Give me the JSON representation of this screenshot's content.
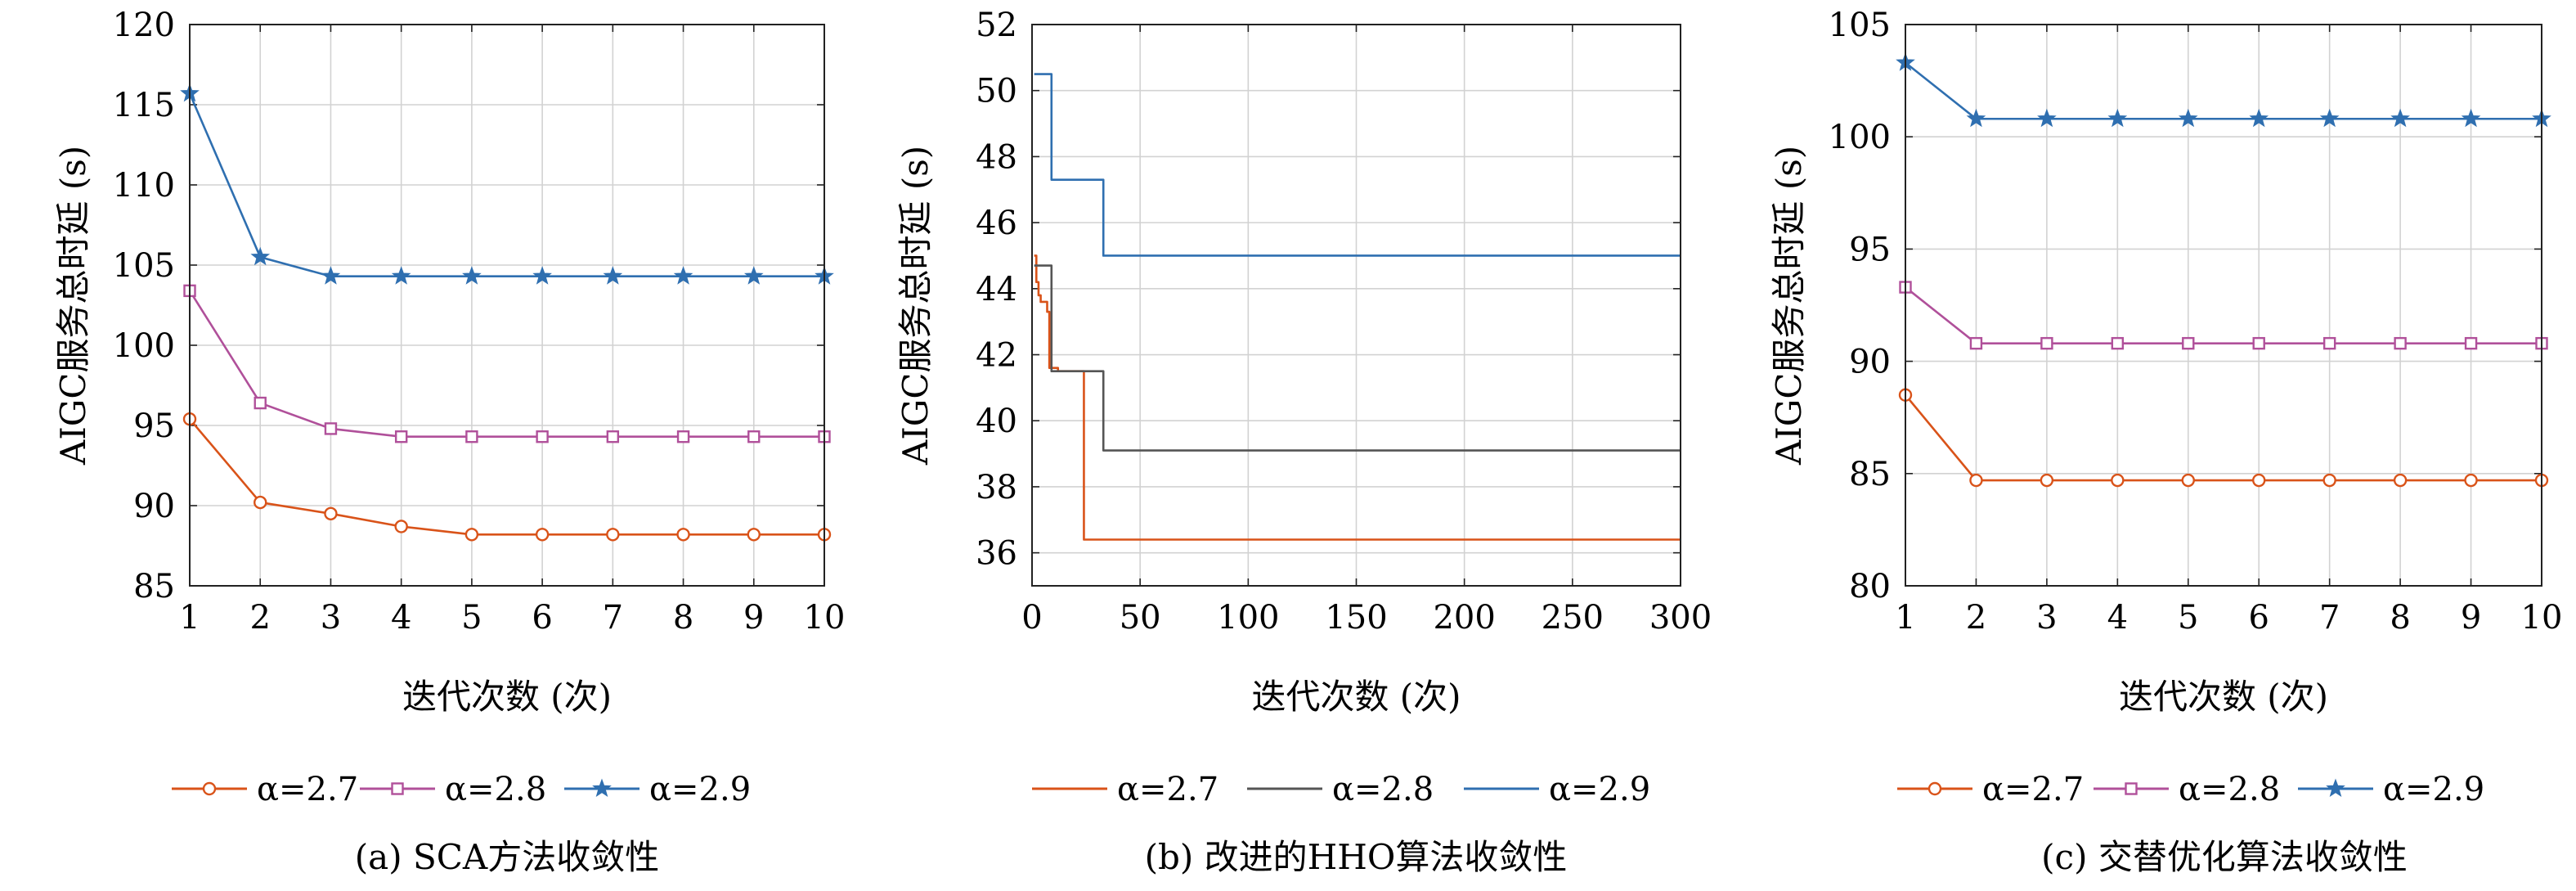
{
  "chart_data": [
    {
      "type": "line",
      "caption": "(a) SCA方法收敛性",
      "xlabel": "迭代次数 (次)",
      "ylabel": "AIGC服务总时延 (s)",
      "xlim": [
        1,
        10
      ],
      "ylim": [
        85,
        120
      ],
      "xticks": [
        1,
        2,
        3,
        4,
        5,
        6,
        7,
        8,
        9,
        10
      ],
      "yticks": [
        85,
        90,
        95,
        100,
        105,
        110,
        115,
        120
      ],
      "grid": true,
      "legend_position": "bottom",
      "x": [
        1,
        2,
        3,
        4,
        5,
        6,
        7,
        8,
        9,
        10
      ],
      "series": [
        {
          "name": "α=2.7",
          "color": "#d95319",
          "marker": "circle",
          "values": [
            95.4,
            90.2,
            89.5,
            88.7,
            88.2,
            88.2,
            88.2,
            88.2,
            88.2,
            88.2
          ]
        },
        {
          "name": "α=2.8",
          "color": "#b0509a",
          "marker": "square",
          "values": [
            103.4,
            96.4,
            94.8,
            94.3,
            94.3,
            94.3,
            94.3,
            94.3,
            94.3,
            94.3
          ]
        },
        {
          "name": "α=2.9",
          "color": "#2f6fb0",
          "marker": "star",
          "values": [
            115.7,
            105.5,
            104.3,
            104.3,
            104.3,
            104.3,
            104.3,
            104.3,
            104.3,
            104.3
          ]
        }
      ]
    },
    {
      "type": "line",
      "caption": "(b) 改进的HHO算法收敛性",
      "xlabel": "迭代次数 (次)",
      "ylabel": "AIGC服务总时延 (s)",
      "xlim": [
        0,
        300
      ],
      "ylim": [
        35,
        52
      ],
      "xticks": [
        0,
        50,
        100,
        150,
        200,
        250,
        300
      ],
      "yticks": [
        36,
        38,
        40,
        42,
        44,
        46,
        48,
        50,
        52
      ],
      "grid": true,
      "legend_position": "bottom",
      "series": [
        {
          "name": "α=2.7",
          "color": "#d95319",
          "step": true,
          "points": [
            [
              1,
              45.0
            ],
            [
              2,
              44.2
            ],
            [
              3,
              43.8
            ],
            [
              4,
              43.6
            ],
            [
              5,
              43.6
            ],
            [
              7,
              43.3
            ],
            [
              8,
              41.6
            ],
            [
              12,
              41.5
            ],
            [
              22,
              41.5
            ],
            [
              24,
              36.4
            ],
            [
              300,
              36.4
            ]
          ]
        },
        {
          "name": "α=2.8",
          "color": "#555555",
          "step": true,
          "points": [
            [
              1,
              44.7
            ],
            [
              8,
              44.7
            ],
            [
              9,
              41.5
            ],
            [
              32,
              41.5
            ],
            [
              33,
              39.1
            ],
            [
              300,
              39.1
            ]
          ]
        },
        {
          "name": "α=2.9",
          "color": "#2f6fb0",
          "step": true,
          "points": [
            [
              1,
              50.5
            ],
            [
              8,
              50.5
            ],
            [
              9,
              47.3
            ],
            [
              32,
              47.3
            ],
            [
              33,
              45.0
            ],
            [
              300,
              45.0
            ]
          ]
        }
      ]
    },
    {
      "type": "line",
      "caption": "(c) 交替优化算法收敛性",
      "xlabel": "迭代次数 (次)",
      "ylabel": "AIGC服务总时延 (s)",
      "xlim": [
        1,
        10
      ],
      "ylim": [
        80,
        105
      ],
      "xticks": [
        1,
        2,
        3,
        4,
        5,
        6,
        7,
        8,
        9,
        10
      ],
      "yticks": [
        80,
        85,
        90,
        95,
        100,
        105
      ],
      "grid": true,
      "legend_position": "bottom",
      "x": [
        1,
        2,
        3,
        4,
        5,
        6,
        7,
        8,
        9,
        10
      ],
      "series": [
        {
          "name": "α=2.7",
          "color": "#d95319",
          "marker": "circle",
          "values": [
            88.5,
            84.7,
            84.7,
            84.7,
            84.7,
            84.7,
            84.7,
            84.7,
            84.7,
            84.7
          ]
        },
        {
          "name": "α=2.8",
          "color": "#b0509a",
          "marker": "square",
          "values": [
            93.3,
            90.8,
            90.8,
            90.8,
            90.8,
            90.8,
            90.8,
            90.8,
            90.8,
            90.8
          ]
        },
        {
          "name": "α=2.9",
          "color": "#2f6fb0",
          "marker": "star",
          "values": [
            103.3,
            100.8,
            100.8,
            100.8,
            100.8,
            100.8,
            100.8,
            100.8,
            100.8,
            100.8
          ]
        }
      ]
    }
  ]
}
